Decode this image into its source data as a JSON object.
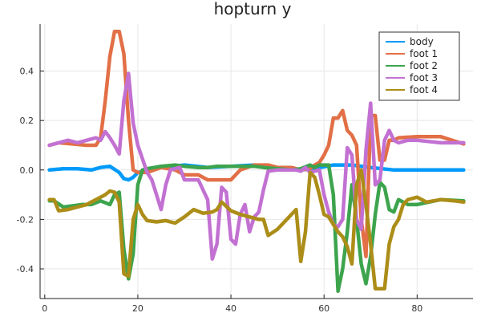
{
  "chart_data": {
    "type": "line",
    "title": "hopturn y",
    "xlabel": "",
    "ylabel": "",
    "xlim": [
      -1,
      92
    ],
    "ylim": [
      -0.52,
      0.59
    ],
    "xticks": [
      0,
      20,
      40,
      60,
      80
    ],
    "yticks": [
      -0.4,
      -0.2,
      0.0,
      0.2,
      0.4
    ],
    "ytick_labels": [
      "-0.4",
      "-0.2",
      "0.0",
      "0.2",
      "0.4"
    ],
    "grid": true,
    "legend_position": "top-right",
    "series": [
      {
        "name": "body",
        "color": "#009AFA",
        "x": [
          1,
          4,
          7,
          10,
          12,
          14,
          16,
          17,
          18,
          19,
          20,
          25,
          30,
          35,
          40,
          45,
          50,
          55,
          58,
          62,
          66,
          70,
          75,
          80,
          85,
          90
        ],
        "y": [
          0.0,
          0.005,
          0.005,
          0.0,
          0.01,
          0.015,
          -0.01,
          -0.035,
          -0.04,
          -0.03,
          -0.01,
          0.01,
          0.02,
          0.01,
          0.015,
          0.02,
          0.0,
          0.0,
          0.005,
          0.02,
          0.02,
          0.01,
          0.0,
          0.0,
          0.0,
          0.0
        ]
      },
      {
        "name": "foot 1",
        "color": "#E26F46",
        "x": [
          1,
          3,
          6,
          9,
          11,
          12,
          13,
          14,
          15,
          16,
          17,
          18,
          19,
          20,
          22,
          25,
          28,
          30,
          33,
          35,
          37,
          40,
          42,
          45,
          48,
          50,
          53,
          55,
          57,
          58,
          59,
          60,
          61,
          62,
          63,
          64,
          65,
          66,
          67,
          68,
          69,
          70,
          71,
          72,
          73,
          74,
          75,
          76,
          80,
          85,
          90
        ],
        "y": [
          0.1,
          0.11,
          0.105,
          0.1,
          0.1,
          0.13,
          0.28,
          0.46,
          0.56,
          0.56,
          0.47,
          0.2,
          0.0,
          -0.01,
          -0.01,
          0.01,
          0.0,
          -0.02,
          -0.02,
          -0.04,
          -0.04,
          -0.04,
          0.0,
          0.02,
          0.02,
          0.01,
          0.01,
          0.0,
          0.005,
          0.02,
          0.03,
          0.06,
          0.1,
          0.21,
          0.21,
          0.24,
          0.16,
          0.14,
          0.1,
          -0.2,
          -0.35,
          0.22,
          0.22,
          0.04,
          0.04,
          0.12,
          0.12,
          0.13,
          0.135,
          0.135,
          0.105
        ]
      },
      {
        "name": "foot 2",
        "color": "#3DA44D",
        "x": [
          1,
          2,
          4,
          6,
          8,
          10,
          12,
          14,
          15,
          16,
          17,
          18,
          19,
          20,
          21,
          22,
          25,
          28,
          30,
          33,
          35,
          37,
          40,
          43,
          45,
          47,
          50,
          53,
          55,
          57,
          58,
          59,
          60,
          61,
          62,
          63,
          64,
          65,
          66,
          67,
          68,
          69,
          70,
          71,
          72,
          73,
          74,
          75,
          76,
          78,
          80,
          85,
          90
        ],
        "y": [
          -0.125,
          -0.125,
          -0.15,
          -0.145,
          -0.14,
          -0.14,
          -0.125,
          -0.14,
          -0.1,
          -0.09,
          -0.32,
          -0.44,
          -0.34,
          -0.06,
          0.0,
          0.005,
          0.015,
          0.02,
          0.015,
          0.01,
          0.01,
          0.015,
          0.015,
          0.015,
          0.015,
          0.01,
          0.005,
          0.0,
          0.005,
          0.02,
          0.01,
          0.02,
          0.02,
          0.02,
          -0.1,
          -0.49,
          -0.4,
          -0.25,
          -0.06,
          -0.2,
          -0.38,
          -0.46,
          -0.35,
          -0.18,
          -0.05,
          -0.07,
          -0.16,
          -0.17,
          -0.12,
          -0.14,
          -0.14,
          -0.12,
          -0.125
        ]
      },
      {
        "name": "foot 3",
        "color": "#C271D2",
        "x": [
          1,
          3,
          5,
          7,
          9,
          11,
          12,
          13,
          14,
          15,
          16,
          17,
          18,
          19,
          20,
          22,
          23,
          24,
          25,
          26,
          27,
          28,
          29,
          30,
          33,
          35,
          36,
          37,
          38,
          39,
          40,
          41,
          42,
          43,
          44,
          45,
          46,
          47,
          48,
          50,
          52,
          54,
          55,
          56,
          57,
          58,
          59,
          60,
          61,
          62,
          63,
          64,
          65,
          66,
          67,
          68,
          69,
          70,
          71,
          72,
          73,
          74,
          75,
          76,
          78,
          80,
          85,
          90
        ],
        "y": [
          0.1,
          0.11,
          0.12,
          0.11,
          0.12,
          0.13,
          0.12,
          0.155,
          0.13,
          0.1,
          0.065,
          0.28,
          0.39,
          0.19,
          0.1,
          -0.01,
          -0.04,
          -0.1,
          -0.16,
          -0.06,
          0.0,
          0.005,
          0.01,
          -0.04,
          -0.04,
          -0.12,
          -0.36,
          -0.3,
          -0.07,
          -0.09,
          -0.28,
          -0.3,
          -0.18,
          -0.14,
          -0.25,
          -0.19,
          -0.17,
          -0.08,
          -0.005,
          0.0,
          0.0,
          0.0,
          -0.005,
          0.01,
          -0.01,
          -0.005,
          0.0,
          -0.1,
          -0.17,
          -0.22,
          -0.23,
          -0.2,
          0.09,
          0.06,
          -0.2,
          -0.24,
          0.08,
          0.27,
          -0.06,
          -0.04,
          0.12,
          0.16,
          0.12,
          0.11,
          0.12,
          0.12,
          0.11,
          0.11
        ]
      },
      {
        "name": "foot 4",
        "color": "#AC8D18",
        "x": [
          1,
          2,
          3,
          5,
          7,
          9,
          11,
          13,
          14,
          15,
          16,
          17,
          18,
          19,
          20,
          21,
          22,
          24,
          26,
          28,
          30,
          32,
          34,
          36,
          37,
          38,
          40,
          42,
          44,
          46,
          47,
          48,
          50,
          52,
          54,
          55,
          56,
          57,
          58,
          59,
          60,
          61,
          62,
          63,
          64,
          65,
          66,
          67,
          68,
          69,
          70,
          71,
          72,
          73,
          74,
          75,
          76,
          77,
          78,
          80,
          82,
          85,
          88,
          90
        ],
        "y": [
          -0.12,
          -0.12,
          -0.165,
          -0.16,
          -0.15,
          -0.14,
          -0.12,
          -0.1,
          -0.085,
          -0.09,
          -0.13,
          -0.42,
          -0.43,
          -0.2,
          -0.14,
          -0.18,
          -0.205,
          -0.21,
          -0.205,
          -0.215,
          -0.19,
          -0.16,
          -0.175,
          -0.17,
          -0.16,
          -0.13,
          -0.165,
          -0.18,
          -0.19,
          -0.2,
          -0.2,
          -0.265,
          -0.24,
          -0.2,
          -0.16,
          -0.37,
          -0.25,
          -0.01,
          -0.03,
          -0.1,
          -0.18,
          -0.19,
          -0.22,
          -0.25,
          -0.27,
          -0.31,
          -0.38,
          -0.06,
          0.0,
          -0.14,
          -0.3,
          -0.48,
          -0.48,
          -0.48,
          -0.3,
          -0.23,
          -0.2,
          -0.14,
          -0.12,
          -0.11,
          -0.13,
          -0.12,
          -0.125,
          -0.13
        ]
      }
    ]
  }
}
